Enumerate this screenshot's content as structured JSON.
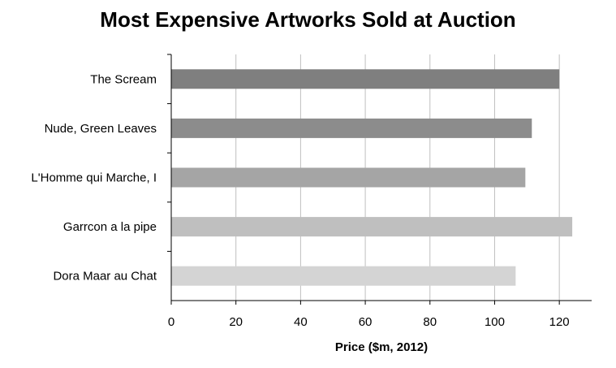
{
  "chart_data": {
    "type": "bar",
    "orientation": "horizontal",
    "title": "Most Expensive Artworks Sold at Auction",
    "xlabel": "Price ($m, 2012)",
    "ylabel": "",
    "categories": [
      "The Scream",
      "Nude, Green Leaves",
      "L'Homme qui Marche, I",
      "Garrcon a la pipe",
      "Dora Maar au Chat"
    ],
    "values": [
      120,
      111.5,
      109.5,
      124,
      106.5
    ],
    "bar_colors": [
      "#7f7f7f",
      "#8c8c8c",
      "#a5a5a5",
      "#bfbfbf",
      "#d4d4d4"
    ],
    "xlim": [
      0,
      130
    ],
    "xticks": [
      0,
      20,
      40,
      60,
      80,
      100,
      120
    ],
    "grid": true,
    "legend": "none"
  }
}
